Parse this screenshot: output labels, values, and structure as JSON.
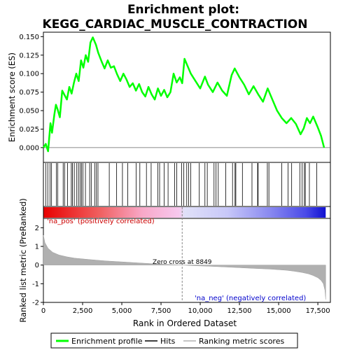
{
  "chart_data": {
    "type": "line",
    "title": "Enrichment plot:\nKEGG_CARDIAC_MUSCLE_CONTRACTION",
    "title_lines": [
      "Enrichment plot:",
      "KEGG_CARDIAC_MUSCLE_CONTRACTION"
    ],
    "xlabel": "Rank in Ordered Dataset",
    "xlim": [
      0,
      18300
    ],
    "x_ticks": [
      0,
      2500,
      5000,
      7500,
      10000,
      12500,
      15000,
      17500
    ],
    "x_tick_labels": [
      "0",
      "2,500",
      "5,000",
      "7,500",
      "10,000",
      "12,500",
      "15,000",
      "17,500"
    ],
    "es_panel": {
      "ylabel": "Enrichment score (ES)",
      "ylim": [
        -0.02,
        0.156
      ],
      "y_ticks": [
        0.0,
        0.025,
        0.05,
        0.075,
        0.1,
        0.125,
        0.15
      ],
      "y_tick_labels": [
        "0.000",
        "0.025",
        "0.050",
        "0.075",
        "0.100",
        "0.125",
        "0.150"
      ],
      "series_name": "Enrichment profile",
      "color": "#00ff00",
      "x": [
        0,
        150,
        300,
        450,
        550,
        700,
        800,
        900,
        1050,
        1200,
        1350,
        1500,
        1650,
        1800,
        1950,
        2100,
        2250,
        2400,
        2550,
        2700,
        2850,
        3000,
        3150,
        3350,
        3500,
        3700,
        3900,
        4100,
        4300,
        4500,
        4700,
        4900,
        5100,
        5300,
        5500,
        5700,
        5900,
        6100,
        6300,
        6500,
        6700,
        6900,
        7100,
        7300,
        7500,
        7700,
        7900,
        8100,
        8300,
        8500,
        8700,
        8849,
        9000,
        9200,
        9400,
        9700,
        10000,
        10300,
        10500,
        10800,
        11100,
        11400,
        11700,
        12000,
        12200,
        12500,
        12800,
        13100,
        13400,
        13700,
        14000,
        14300,
        14600,
        14900,
        15200,
        15500,
        15800,
        16100,
        16400,
        16600,
        16800,
        17000,
        17200,
        17500,
        17700,
        17900
      ],
      "y": [
        0.0,
        0.005,
        -0.005,
        0.033,
        0.02,
        0.045,
        0.058,
        0.052,
        0.041,
        0.077,
        0.071,
        0.065,
        0.082,
        0.073,
        0.088,
        0.1,
        0.09,
        0.118,
        0.108,
        0.125,
        0.116,
        0.142,
        0.149,
        0.139,
        0.128,
        0.117,
        0.107,
        0.118,
        0.108,
        0.11,
        0.099,
        0.09,
        0.1,
        0.092,
        0.082,
        0.087,
        0.077,
        0.086,
        0.075,
        0.069,
        0.082,
        0.072,
        0.065,
        0.08,
        0.07,
        0.078,
        0.068,
        0.075,
        0.1,
        0.088,
        0.095,
        0.087,
        0.12,
        0.11,
        0.1,
        0.09,
        0.08,
        0.096,
        0.085,
        0.075,
        0.088,
        0.077,
        0.07,
        0.098,
        0.107,
        0.095,
        0.085,
        0.072,
        0.083,
        0.072,
        0.062,
        0.08,
        0.065,
        0.05,
        0.04,
        0.033,
        0.04,
        0.032,
        0.018,
        0.026,
        0.04,
        0.033,
        0.042,
        0.027,
        0.016,
        0.0
      ]
    },
    "hits_panel": {
      "series_name": "Hits",
      "color": "#000000",
      "hit_positions": [
        150,
        280,
        420,
        520,
        830,
        920,
        1260,
        1350,
        1540,
        1780,
        1850,
        1970,
        2130,
        2240,
        2350,
        2430,
        2520,
        2680,
        2950,
        3050,
        3270,
        3380,
        3480,
        4200,
        4670,
        5040,
        5380,
        5910,
        6150,
        6570,
        6870,
        7290,
        7410,
        7700,
        7950,
        8370,
        8500,
        8820,
        8950,
        9140,
        9260,
        9390,
        9940,
        10300,
        10450,
        10880,
        11010,
        11150,
        11630,
        12060,
        12220,
        12270,
        12690,
        13300,
        13660,
        13690,
        14280,
        14380,
        15200,
        15600,
        15830,
        16350,
        16500,
        16640,
        16700,
        16960,
        17430
      ]
    },
    "ranked_panel": {
      "ylabel": "Ranked list metric (PreRanked)",
      "ylim": [
        -2.0,
        2.5
      ],
      "y_ticks": [
        -2,
        -1,
        0,
        1,
        2
      ],
      "y_tick_labels": [
        "-2",
        "-1",
        "0",
        "1",
        "2"
      ],
      "series_name": "Ranking metric scores",
      "color": "#b0b0b0",
      "x": [
        0,
        100,
        300,
        600,
        1000,
        1500,
        2000,
        3000,
        4000,
        5000,
        6000,
        7000,
        8000,
        8849,
        9500,
        10500,
        11500,
        12500,
        13500,
        14500,
        15500,
        16000,
        16500,
        16900,
        17200,
        17500,
        17700,
        17850,
        17950,
        18000
      ],
      "y": [
        1.6,
        1.2,
        0.9,
        0.68,
        0.54,
        0.44,
        0.37,
        0.29,
        0.22,
        0.17,
        0.12,
        0.07,
        0.03,
        0.0,
        -0.03,
        -0.06,
        -0.1,
        -0.14,
        -0.18,
        -0.22,
        -0.28,
        -0.33,
        -0.4,
        -0.47,
        -0.56,
        -0.68,
        -0.82,
        -1.0,
        -1.35,
        -1.85
      ],
      "zero_cross_label": "Zero cross at 8849",
      "zero_cross_rank": 8849,
      "pos_label": "'na_pos' (positively correlated)",
      "neg_label": "'na_neg' (negatively correlated)",
      "pos_color": "#cc0000",
      "neg_color": "#0000cc"
    },
    "legend": {
      "placement": "bottom",
      "entries": [
        {
          "label": "Enrichment profile",
          "color": "#00ff00"
        },
        {
          "label": "Hits",
          "color": "#000000"
        },
        {
          "label": "Ranking metric scores",
          "color": "#b0b0b0"
        }
      ]
    }
  }
}
